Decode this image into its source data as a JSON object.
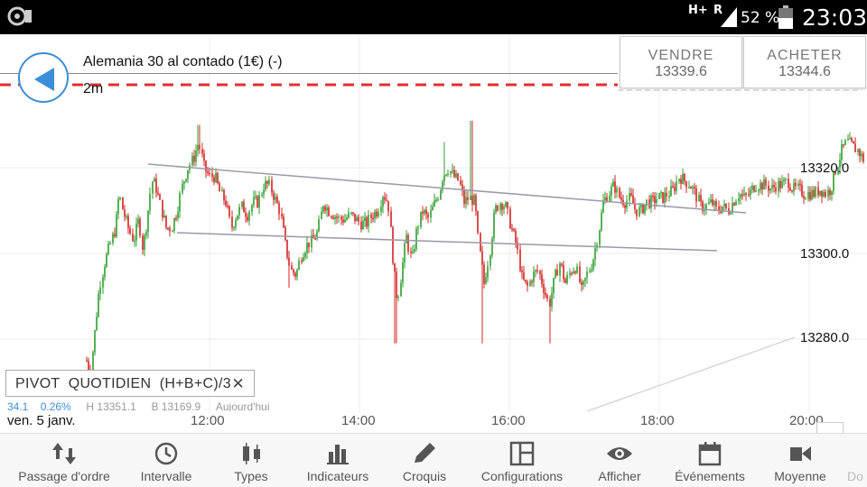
{
  "status_bar": {
    "network": "H+",
    "roaming": "R",
    "battery_percent": "52 %",
    "time": "23:03",
    "battery_level": 0.52
  },
  "header": {
    "instrument": "Alemania 30 al contado (1€) (-)",
    "timeframe": "2m"
  },
  "quotes": {
    "sell_label": "VENDRE",
    "sell_price": "13339.6",
    "buy_label": "ACHETER",
    "buy_price": "13344.6"
  },
  "chart_data": {
    "type": "candlestick",
    "price_labels": [
      "13320.0",
      "13300.0",
      "13280.0"
    ],
    "price_values": [
      13320,
      13300,
      13280
    ],
    "time_labels": [
      "12:00",
      "14:00",
      "16:00",
      "18:00",
      "20:00"
    ],
    "date_label": "ven. 5 janv.",
    "up_color": "#2e9e2e",
    "down_color": "#d62020",
    "current_price_line_color": "#e03030",
    "trendline_color": "#9a9aa8"
  },
  "pivot": {
    "label": "PIVOT  QUOTIDIEN  (H+B+C)/3",
    "close_symbol": "✕"
  },
  "info_strip": {
    "part1": "34.1",
    "part2": "0.26%",
    "part3": "H 13351.1",
    "part4": "B 13169.9",
    "part5": "Aujourd'hui"
  },
  "toolbar": {
    "items": [
      {
        "label": "Passage d'ordre",
        "icon": "order-arrows-icon"
      },
      {
        "label": "Intervalle",
        "icon": "clock-icon"
      },
      {
        "label": "Types",
        "icon": "candles-icon"
      },
      {
        "label": "Indicateurs",
        "icon": "bar-chart-icon"
      },
      {
        "label": "Croquis",
        "icon": "pencil-icon"
      },
      {
        "label": "Configurations",
        "icon": "layout-icon"
      },
      {
        "label": "Afficher",
        "icon": "eye-icon"
      },
      {
        "label": "Événements",
        "icon": "calendar-icon"
      },
      {
        "label": "Moyenne",
        "icon": "camera-icon"
      },
      {
        "label": "Do",
        "icon": "more-icon"
      }
    ]
  }
}
